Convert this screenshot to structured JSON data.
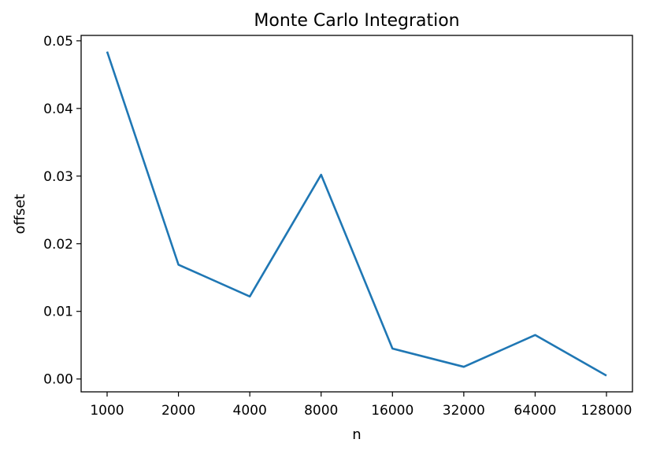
{
  "chart_data": {
    "type": "line",
    "title": "Monte Carlo Integration",
    "xlabel": "n",
    "ylabel": "offset",
    "categories": [
      "1000",
      "2000",
      "4000",
      "8000",
      "16000",
      "32000",
      "64000",
      "128000"
    ],
    "series": [
      {
        "values": [
          0.0484,
          0.0169,
          0.0122,
          0.0302,
          0.0045,
          0.0018,
          0.0065,
          0.0005
        ],
        "color": "#1f77b4"
      }
    ],
    "yticks": [
      0.0,
      0.01,
      0.02,
      0.03,
      0.04,
      0.05
    ],
    "ytick_labels": [
      "0.00",
      "0.01",
      "0.02",
      "0.03",
      "0.04",
      "0.05"
    ],
    "ylim": [
      -0.0019,
      0.0508
    ],
    "grid": false,
    "legend": false
  }
}
